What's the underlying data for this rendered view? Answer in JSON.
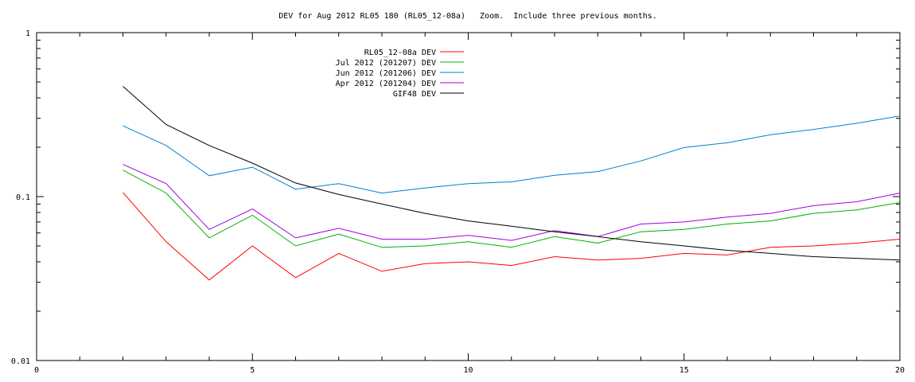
{
  "chart_data": {
    "type": "line",
    "title": "DEV for Aug 2012 RL05 180 (RL05_12-08a)   Zoom.  Include three previous months.",
    "xlabel": "",
    "ylabel": "",
    "xlim": [
      0,
      20
    ],
    "ylim": [
      0.01,
      1
    ],
    "yscale": "log",
    "grid": false,
    "legend_position": "top-center",
    "x_ticks": [
      0,
      5,
      10,
      15,
      20
    ],
    "x_tick_labels": [
      "0",
      "5",
      "10",
      "15",
      "20"
    ],
    "y_ticks": [
      0.01,
      0.1,
      1
    ],
    "y_tick_labels": [
      "0.01",
      "0.1",
      "1"
    ],
    "x": [
      2,
      3,
      4,
      5,
      6,
      7,
      8,
      9,
      10,
      11,
      12,
      13,
      14,
      15,
      16,
      17,
      18,
      19,
      20
    ],
    "series": [
      {
        "name": "RL05_12-08a DEV",
        "color": "#ff0000",
        "values": [
          0.106,
          0.053,
          0.031,
          0.05,
          0.032,
          0.045,
          0.035,
          0.039,
          0.04,
          0.038,
          0.043,
          0.041,
          0.042,
          0.045,
          0.044,
          0.049,
          0.05,
          0.052,
          0.055
        ]
      },
      {
        "name": "Jul 2012 (201207) DEV",
        "color": "#00b000",
        "values": [
          0.145,
          0.105,
          0.056,
          0.077,
          0.05,
          0.059,
          0.049,
          0.05,
          0.053,
          0.049,
          0.057,
          0.052,
          0.061,
          0.063,
          0.068,
          0.071,
          0.079,
          0.083,
          0.092
        ]
      },
      {
        "name": "Jun 2012 (201206) DEV",
        "color": "#0080d0",
        "values": [
          0.27,
          0.205,
          0.134,
          0.151,
          0.111,
          0.12,
          0.105,
          0.113,
          0.12,
          0.123,
          0.135,
          0.142,
          0.165,
          0.199,
          0.213,
          0.238,
          0.257,
          0.28,
          0.31
        ]
      },
      {
        "name": "Apr 2012 (201204) DEV",
        "color": "#a000e0",
        "values": [
          0.157,
          0.12,
          0.063,
          0.084,
          0.056,
          0.064,
          0.055,
          0.055,
          0.058,
          0.054,
          0.062,
          0.057,
          0.068,
          0.07,
          0.075,
          0.079,
          0.088,
          0.093,
          0.105
        ]
      },
      {
        "name": "GIF48 DEV",
        "color": "#000000",
        "values": [
          0.47,
          0.275,
          0.205,
          0.16,
          0.121,
          0.103,
          0.09,
          0.079,
          0.071,
          0.066,
          0.061,
          0.057,
          0.053,
          0.05,
          0.047,
          0.045,
          0.043,
          0.042,
          0.041
        ]
      }
    ]
  }
}
